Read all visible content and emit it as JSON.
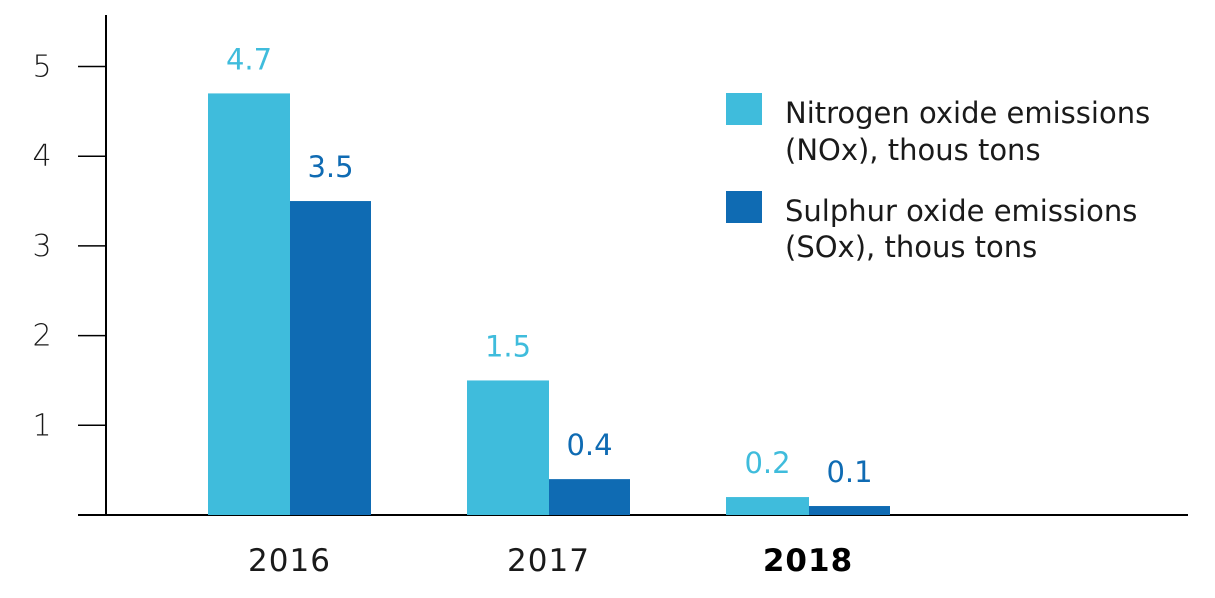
{
  "chart_data": {
    "type": "bar",
    "title": "",
    "xlabel": "",
    "ylabel": "",
    "categories": [
      "2016",
      "2017",
      "2018"
    ],
    "highlighted_category": "2018",
    "series": [
      {
        "name": "Nitrogen oxide emissions (NOx), thous tons",
        "legend_lines": [
          "Nitrogen oxide emissions",
          "(NOx), thous tons"
        ],
        "color": "#3FBCDC",
        "values": [
          4.7,
          1.5,
          0.2
        ],
        "labels": [
          "4.7",
          "1.5",
          "0.2"
        ]
      },
      {
        "name": "Sulphur oxide emissions (SOx), thous tons",
        "legend_lines": [
          "Sulphur oxide emissions",
          "(SOx), thous tons"
        ],
        "color": "#0F6BB3",
        "values": [
          3.5,
          0.4,
          0.1
        ],
        "labels": [
          "3.5",
          "0.4",
          "0.1"
        ]
      }
    ],
    "ylim": [
      0,
      5.5
    ],
    "yticks": [
      1,
      2,
      3,
      4,
      5
    ],
    "ytick_labels": [
      "1",
      "2",
      "3",
      "4",
      "5"
    ],
    "grid": false,
    "legend_position": "top-right"
  }
}
